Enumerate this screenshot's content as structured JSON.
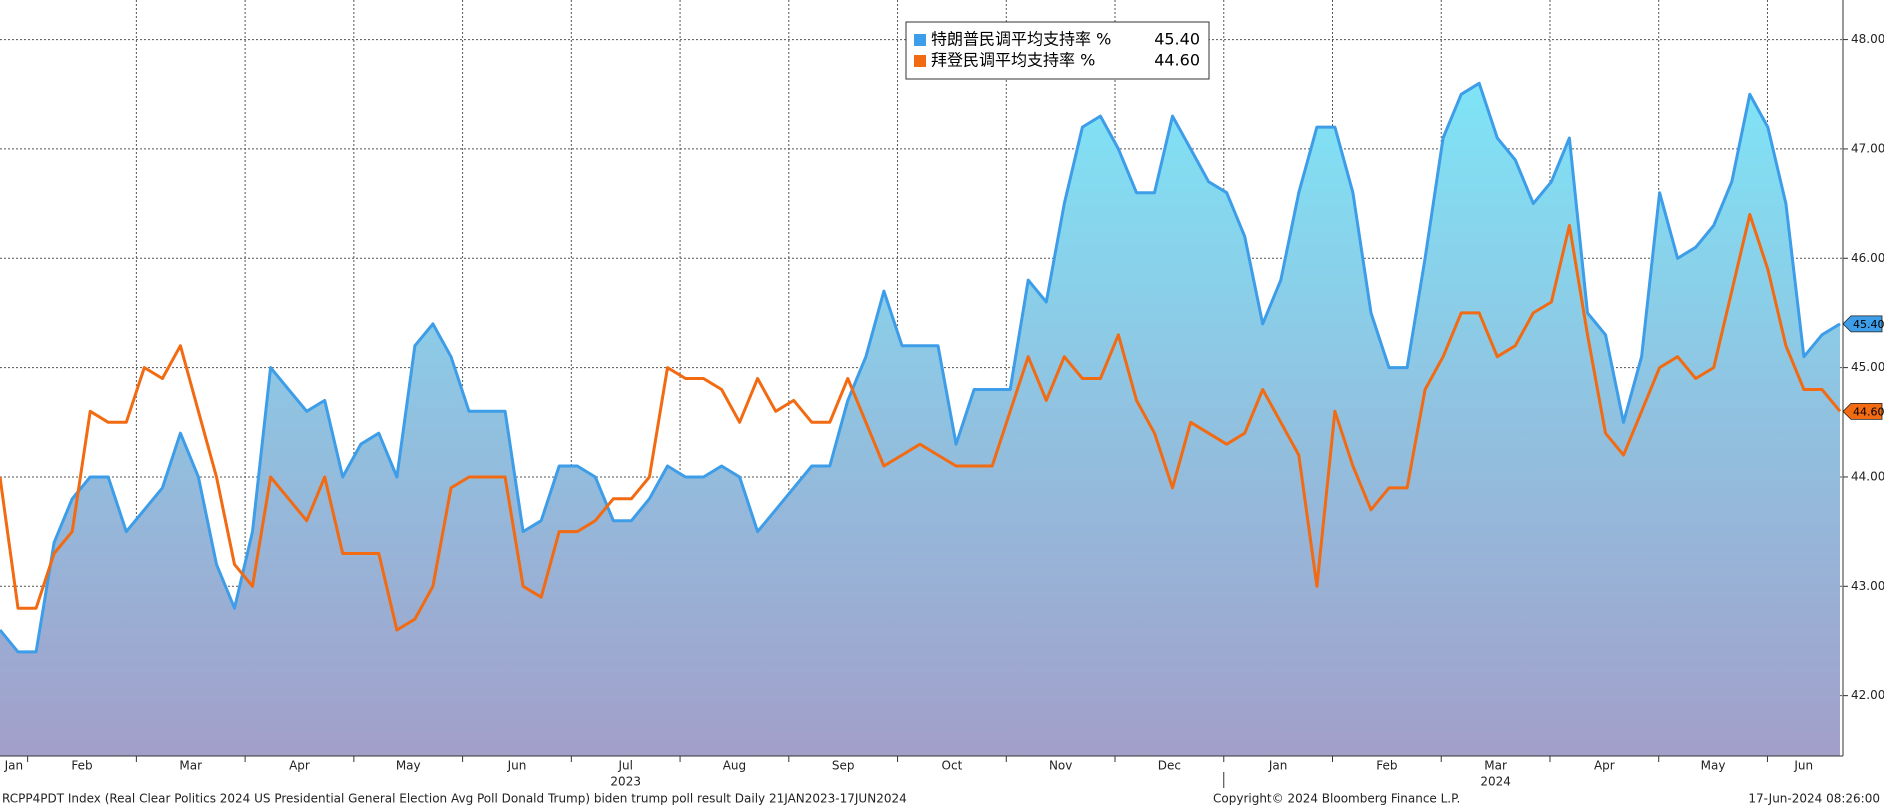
{
  "chart_data": {
    "type": "line",
    "legend": "top-center",
    "grid": true,
    "ylim": [
      41.448,
      48.362
    ],
    "yticks": [
      {
        "value": 42,
        "label": "42.00"
      },
      {
        "value": 43,
        "label": "43.00"
      },
      {
        "value": 44,
        "label": "44.00"
      },
      {
        "value": 45,
        "label": "45.00"
      },
      {
        "value": 46,
        "label": "46.00"
      },
      {
        "value": 47,
        "label": "47.00"
      },
      {
        "value": 48,
        "label": "48.00"
      }
    ],
    "month_labels": [
      "Jan",
      "Feb",
      "Mar",
      "Apr",
      "May",
      "Jun",
      "Jul",
      "Aug",
      "Sep",
      "Oct",
      "Nov",
      "Dec",
      "Jan",
      "Feb",
      "Mar",
      "Apr",
      "May",
      "Jun"
    ],
    "year_labels": [
      "2023",
      "2024"
    ],
    "series": [
      {
        "name": "特朗普民调平均支持率 %",
        "color": "#3d9de8",
        "area": true,
        "last_label": "45.40",
        "values": [
          42.6,
          42.4,
          42.4,
          43.4,
          43.8,
          44.0,
          44.0,
          43.5,
          43.7,
          43.9,
          44.4,
          44.0,
          43.2,
          42.8,
          43.5,
          45.0,
          44.8,
          44.6,
          44.7,
          44.0,
          44.3,
          44.4,
          44.0,
          45.2,
          45.4,
          45.1,
          44.6,
          44.6,
          44.6,
          43.5,
          43.6,
          44.1,
          44.1,
          44.0,
          43.6,
          43.6,
          43.8,
          44.1,
          44.0,
          44.0,
          44.1,
          44.0,
          43.5,
          43.7,
          43.9,
          44.1,
          44.1,
          44.7,
          45.1,
          45.7,
          45.2,
          45.2,
          45.2,
          44.3,
          44.8,
          44.8,
          44.8,
          45.8,
          45.6,
          46.5,
          47.2,
          47.3,
          47.0,
          46.6,
          46.6,
          47.3,
          47.0,
          46.7,
          46.6,
          46.2,
          45.4,
          45.8,
          46.6,
          47.2,
          47.2,
          46.6,
          45.5,
          45.0,
          45.0,
          46.0,
          47.1,
          47.5,
          47.6,
          47.1,
          46.9,
          46.5,
          46.7,
          47.1,
          45.5,
          45.3,
          44.5,
          45.1,
          46.6,
          46.0,
          46.1,
          46.3,
          46.7,
          47.5,
          47.2,
          46.5,
          45.1,
          45.3,
          45.4
        ]
      },
      {
        "name": "拜登民调平均支持率 %",
        "color": "#f26a12",
        "area": false,
        "last_label": "44.60",
        "values": [
          44.0,
          42.8,
          42.8,
          43.3,
          43.5,
          44.6,
          44.5,
          44.5,
          45.0,
          44.9,
          45.2,
          44.6,
          44.0,
          43.2,
          43.0,
          44.0,
          43.8,
          43.6,
          44.0,
          43.3,
          43.3,
          43.3,
          42.6,
          42.7,
          43.0,
          43.9,
          44.0,
          44.0,
          44.0,
          43.0,
          42.9,
          43.5,
          43.5,
          43.6,
          43.8,
          43.8,
          44.0,
          45.0,
          44.9,
          44.9,
          44.8,
          44.5,
          44.9,
          44.6,
          44.7,
          44.5,
          44.5,
          44.9,
          44.5,
          44.1,
          44.2,
          44.3,
          44.2,
          44.1,
          44.1,
          44.1,
          44.6,
          45.1,
          44.7,
          45.1,
          44.9,
          44.9,
          45.3,
          44.7,
          44.4,
          43.9,
          44.5,
          44.4,
          44.3,
          44.4,
          44.8,
          44.5,
          44.2,
          43.0,
          44.6,
          44.1,
          43.7,
          43.9,
          43.9,
          44.8,
          45.1,
          45.5,
          45.5,
          45.1,
          45.2,
          45.5,
          45.6,
          46.3,
          45.3,
          44.4,
          44.2,
          44.6,
          45.0,
          45.1,
          44.9,
          45.0,
          45.7,
          46.4,
          45.9,
          45.2,
          44.8,
          44.8,
          44.6
        ]
      }
    ],
    "footer_left": "RCPP4PDT Index (Real Clear Politics 2024 US Presidential General Election Avg Poll Donald Trump) biden trump poll result  Daily 21JAN2023-17JUN2024",
    "footer_center": "Copyright© 2024 Bloomberg Finance L.P.",
    "footer_right": "17-Jun-2024 08:26:00"
  }
}
